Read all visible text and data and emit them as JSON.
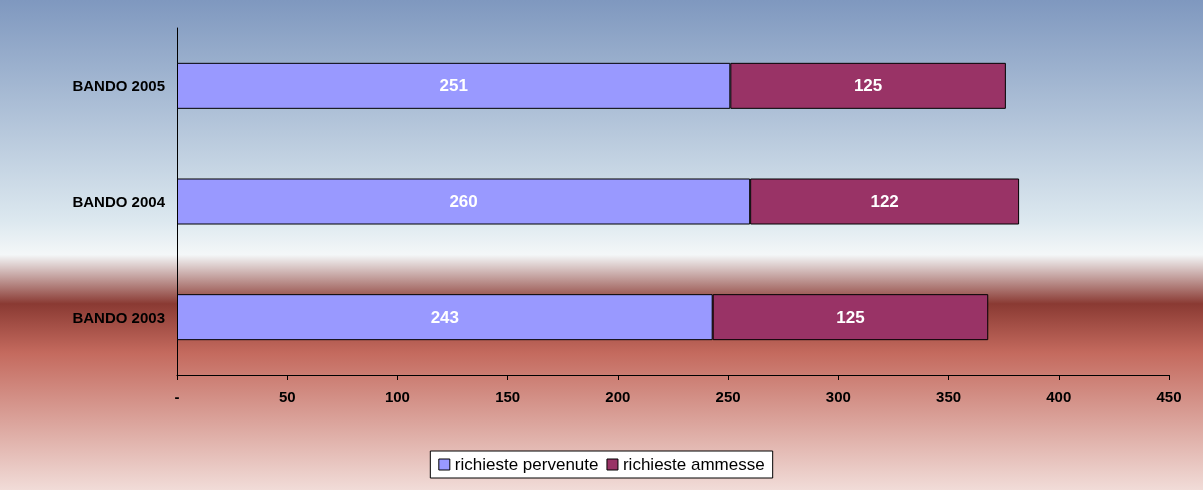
{
  "chart_data": {
    "type": "bar",
    "orientation": "horizontal",
    "stacked": true,
    "data_labels": true,
    "legend": "bottom",
    "grid": false,
    "categories": [
      "BANDO 2005",
      "BANDO 2004",
      "BANDO 2003"
    ],
    "series": [
      {
        "name": "richieste pervenute",
        "color": "#9999ff",
        "values": [
          251,
          260,
          243
        ]
      },
      {
        "name": "richieste ammesse",
        "color": "#993366",
        "values": [
          125,
          122,
          125
        ]
      }
    ],
    "xlim": [
      0,
      450
    ],
    "xticks": [
      {
        "value": 0,
        "label": "-"
      },
      50,
      100,
      150,
      200,
      250,
      300,
      350,
      400,
      450
    ]
  }
}
